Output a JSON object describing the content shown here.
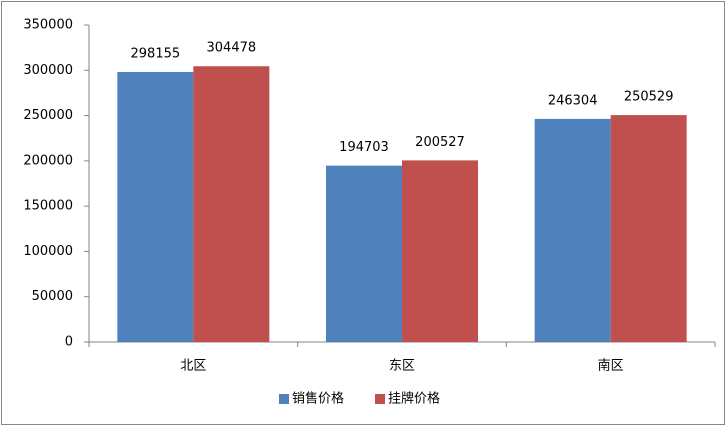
{
  "chart_data": {
    "type": "bar",
    "categories": [
      "北区",
      "东区",
      "南区"
    ],
    "series": [
      {
        "name": "销售价格",
        "color": "#4f81bd",
        "values": [
          298155,
          194703,
          246304
        ]
      },
      {
        "name": "挂牌价格",
        "color": "#c0504d",
        "values": [
          304478,
          200527,
          250529
        ]
      }
    ],
    "ylim": [
      0,
      350000
    ],
    "yticks": [
      0,
      50000,
      100000,
      150000,
      200000,
      250000,
      300000,
      350000
    ],
    "grid": false,
    "legend": "bottom"
  }
}
